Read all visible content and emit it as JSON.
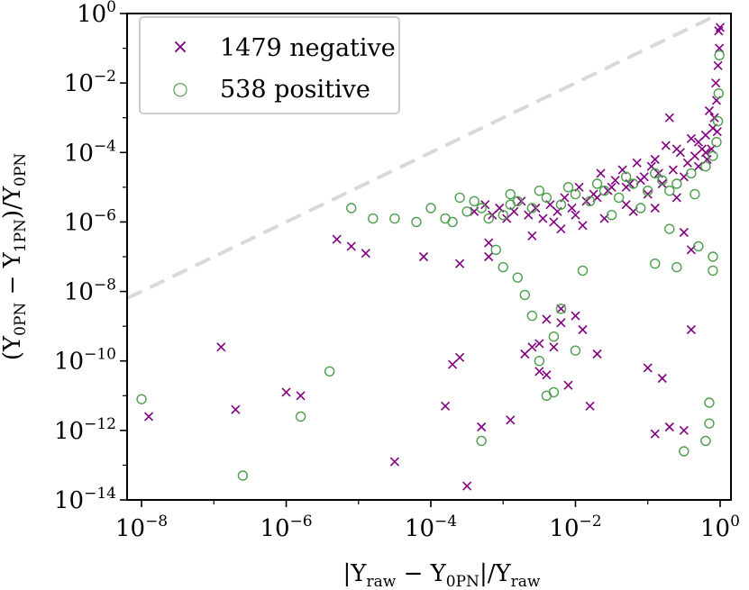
{
  "chart_data": {
    "type": "scatter",
    "x_scale": "log",
    "y_scale": "log",
    "xlim_exp": [
      -8.2,
      0.15
    ],
    "ylim_exp": [
      -14,
      0
    ],
    "x_ticks": [
      {
        "base": "10",
        "exp": "−8",
        "value": -8
      },
      {
        "base": "10",
        "exp": "−6",
        "value": -6
      },
      {
        "base": "10",
        "exp": "−4",
        "value": -4
      },
      {
        "base": "10",
        "exp": "−2",
        "value": -2
      },
      {
        "base": "10",
        "exp": "0",
        "value": 0
      }
    ],
    "y_ticks": [
      {
        "base": "10",
        "exp": "0",
        "value": 0
      },
      {
        "base": "10",
        "exp": "−2",
        "value": -2
      },
      {
        "base": "10",
        "exp": "−4",
        "value": -4
      },
      {
        "base": "10",
        "exp": "−6",
        "value": -6
      },
      {
        "base": "10",
        "exp": "−8",
        "value": -8
      },
      {
        "base": "10",
        "exp": "−10",
        "value": -10
      },
      {
        "base": "10",
        "exp": "−12",
        "value": -12
      },
      {
        "base": "10",
        "exp": "−14",
        "value": -14
      }
    ],
    "xlabel": {
      "pre": "|Υ",
      "s1": "raw",
      "mid": " − Υ",
      "s2": "0PN",
      "mid2": "|/Υ",
      "s3": "raw"
    },
    "ylabel": {
      "pre": "(Υ",
      "s1": "0PN",
      "mid": " − Υ",
      "s2": "1PN",
      "mid2": ")/Υ",
      "s3": "0PN"
    },
    "reference_line": {
      "style": "dashed",
      "color": "#d9d9d9",
      "relation": "y = x"
    },
    "legend": {
      "placement": "upper-left",
      "entries": [
        {
          "marker": "×",
          "label": "1479 negative"
        },
        {
          "marker": "○",
          "label": "538 positive"
        }
      ]
    },
    "series": [
      {
        "name": "1479 negative",
        "marker": "x",
        "color": "#800080",
        "points": [
          [
            -7.9,
            -11.6
          ],
          [
            -6.9,
            -9.6
          ],
          [
            -6.7,
            -11.4
          ],
          [
            -6.0,
            -10.9
          ],
          [
            -5.8,
            -11.0
          ],
          [
            -4.9,
            -6.9
          ],
          [
            -5.3,
            -6.5
          ],
          [
            -5.1,
            -6.7
          ],
          [
            -4.5,
            -12.9
          ],
          [
            -4.1,
            -7.0
          ],
          [
            -3.8,
            -11.3
          ],
          [
            -3.7,
            -10.1
          ],
          [
            -3.6,
            -9.9
          ],
          [
            -3.6,
            -7.2
          ],
          [
            -3.5,
            -13.6
          ],
          [
            -3.3,
            -11.9
          ],
          [
            -3.2,
            -7.0
          ],
          [
            -3.2,
            -6.6
          ],
          [
            -2.9,
            -11.7
          ],
          [
            -2.7,
            -9.8
          ],
          [
            -2.6,
            -9.6
          ],
          [
            -2.5,
            -9.5
          ],
          [
            -2.5,
            -10.3
          ],
          [
            -2.4,
            -10.4
          ],
          [
            -2.3,
            -9.6
          ],
          [
            -2.2,
            -8.5
          ],
          [
            -2.1,
            -10.7
          ],
          [
            -1.9,
            -9.1
          ],
          [
            -1.8,
            -11.3
          ],
          [
            -2.4,
            -8.8
          ],
          [
            -2.2,
            -8.9
          ],
          [
            -2.0,
            -8.7
          ],
          [
            -1.7,
            -9.8
          ],
          [
            -1.0,
            -10.2
          ],
          [
            -0.8,
            -10.5
          ],
          [
            -0.9,
            -12.1
          ],
          [
            -0.7,
            -11.9
          ],
          [
            -0.5,
            -12.0
          ],
          [
            -0.4,
            -9.1
          ],
          [
            -1.5,
            -5.0
          ],
          [
            -1.3,
            -5.5
          ],
          [
            -1.1,
            -4.8
          ],
          [
            -0.9,
            -4.2
          ],
          [
            -0.7,
            -3.0
          ],
          [
            -0.6,
            -3.9
          ],
          [
            -0.5,
            -6.3
          ],
          [
            -0.4,
            -6.8
          ],
          [
            -0.3,
            -3.7
          ],
          [
            -0.2,
            -3.5
          ],
          [
            -0.1,
            -3.3
          ],
          [
            -0.05,
            -2.5
          ],
          [
            -0.03,
            -1.5
          ],
          [
            -0.02,
            -0.5
          ],
          [
            -0.01,
            -1.0
          ],
          [
            0.0,
            -0.4
          ],
          [
            -0.08,
            -3.0
          ],
          [
            -0.15,
            -2.8
          ],
          [
            -0.25,
            -3.9
          ],
          [
            -0.35,
            -4.1
          ],
          [
            -0.45,
            -4.3
          ],
          [
            -0.55,
            -4.0
          ],
          [
            -0.65,
            -4.5
          ],
          [
            -0.75,
            -3.8
          ],
          [
            -0.85,
            -4.6
          ],
          [
            -0.95,
            -4.4
          ],
          [
            -1.05,
            -4.7
          ],
          [
            -1.15,
            -4.3
          ],
          [
            -1.25,
            -4.9
          ],
          [
            -1.35,
            -4.5
          ],
          [
            -1.45,
            -4.8
          ],
          [
            -1.55,
            -5.1
          ],
          [
            -1.65,
            -4.6
          ],
          [
            -1.75,
            -5.2
          ],
          [
            -1.85,
            -5.4
          ],
          [
            -1.95,
            -5.0
          ],
          [
            -2.05,
            -5.6
          ],
          [
            -2.15,
            -5.3
          ],
          [
            -2.25,
            -5.7
          ],
          [
            -2.35,
            -5.5
          ],
          [
            -2.45,
            -5.9
          ],
          [
            -2.55,
            -5.6
          ],
          [
            -2.65,
            -5.8
          ],
          [
            -2.75,
            -5.4
          ],
          [
            -2.85,
            -5.7
          ],
          [
            -2.95,
            -5.9
          ],
          [
            -3.05,
            -5.6
          ],
          [
            -3.15,
            -5.8
          ],
          [
            -3.25,
            -5.5
          ],
          [
            -3.4,
            -5.7
          ],
          [
            -0.3,
            -4.4
          ],
          [
            -0.6,
            -5.3
          ],
          [
            -0.9,
            -5.6
          ],
          [
            -1.2,
            -5.7
          ],
          [
            -1.6,
            -5.9
          ],
          [
            -1.9,
            -6.1
          ],
          [
            -2.2,
            -6.2
          ],
          [
            -2.6,
            -6.4
          ],
          [
            -0.2,
            -4.0
          ],
          [
            -0.4,
            -3.6
          ],
          [
            -0.12,
            -3.9
          ],
          [
            -0.18,
            -4.2
          ],
          [
            -0.5,
            -4.7
          ],
          [
            -0.8,
            -4.9
          ],
          [
            -1.0,
            -5.2
          ],
          [
            -1.3,
            -5.0
          ],
          [
            -1.7,
            -5.3
          ],
          [
            -2.0,
            -5.8
          ],
          [
            -2.3,
            -6.0
          ],
          [
            -0.06,
            -2.0
          ],
          [
            -0.04,
            -3.4
          ]
        ]
      },
      {
        "name": "538 positive",
        "marker": "o",
        "color": "#4d9e4d",
        "points": [
          [
            -8.0,
            -11.1
          ],
          [
            -6.6,
            -13.3
          ],
          [
            -5.8,
            -11.6
          ],
          [
            -5.4,
            -10.3
          ],
          [
            -5.1,
            -5.6
          ],
          [
            -4.8,
            -5.9
          ],
          [
            -4.5,
            -5.9
          ],
          [
            -4.2,
            -6.0
          ],
          [
            -4.0,
            -5.6
          ],
          [
            -3.8,
            -5.9
          ],
          [
            -3.6,
            -5.3
          ],
          [
            -3.4,
            -5.4
          ],
          [
            -3.2,
            -5.9
          ],
          [
            -3.1,
            -6.8
          ],
          [
            -3.0,
            -7.3
          ],
          [
            -2.9,
            -5.5
          ],
          [
            -2.8,
            -7.6
          ],
          [
            -2.7,
            -8.1
          ],
          [
            -2.6,
            -8.7
          ],
          [
            -2.5,
            -10.0
          ],
          [
            -2.4,
            -11.0
          ],
          [
            -2.3,
            -10.9
          ],
          [
            -2.3,
            -9.3
          ],
          [
            -2.2,
            -8.5
          ],
          [
            -2.0,
            -9.7
          ],
          [
            -1.9,
            -7.4
          ],
          [
            -3.3,
            -12.3
          ],
          [
            -3.7,
            -6.0
          ],
          [
            -3.5,
            -5.7
          ],
          [
            -3.3,
            -5.6
          ],
          [
            -3.0,
            -5.8
          ],
          [
            -2.8,
            -5.4
          ],
          [
            -2.6,
            -5.6
          ],
          [
            -2.4,
            -5.3
          ],
          [
            -2.2,
            -5.5
          ],
          [
            -2.0,
            -5.2
          ],
          [
            -1.8,
            -5.4
          ],
          [
            -1.6,
            -5.1
          ],
          [
            -1.4,
            -5.3
          ],
          [
            -1.2,
            -4.9
          ],
          [
            -1.0,
            -5.1
          ],
          [
            -0.8,
            -4.8
          ],
          [
            -0.6,
            -4.9
          ],
          [
            -0.4,
            -4.6
          ],
          [
            -0.2,
            -4.4
          ],
          [
            -0.1,
            -4.1
          ],
          [
            -0.05,
            -3.7
          ],
          [
            -0.03,
            -3.1
          ],
          [
            -0.02,
            -2.3
          ],
          [
            -0.01,
            -1.2
          ],
          [
            -0.6,
            -7.3
          ],
          [
            -0.5,
            -12.6
          ],
          [
            -0.2,
            -12.3
          ],
          [
            -0.15,
            -11.8
          ],
          [
            -0.15,
            -11.2
          ],
          [
            -0.3,
            -6.7
          ],
          [
            -0.1,
            -7.4
          ],
          [
            -0.1,
            -7.0
          ],
          [
            -0.9,
            -7.2
          ],
          [
            -0.7,
            -6.2
          ],
          [
            -1.1,
            -5.6
          ],
          [
            -1.5,
            -5.8
          ],
          [
            -0.35,
            -5.2
          ],
          [
            -0.7,
            -5.1
          ],
          [
            -0.9,
            -4.6
          ],
          [
            -1.3,
            -4.7
          ],
          [
            -1.7,
            -4.9
          ],
          [
            -2.1,
            -5.0
          ],
          [
            -2.5,
            -5.1
          ],
          [
            -2.9,
            -5.2
          ]
        ]
      }
    ]
  }
}
